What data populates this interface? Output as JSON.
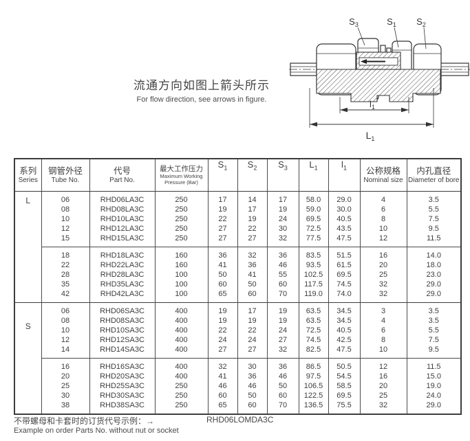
{
  "figure": {
    "caption_zh": "流通方向如图上箭头所示",
    "caption_en": "For flow direction, see arrows in figure.",
    "labels": {
      "s3": {
        "base": "S",
        "sub": "3"
      },
      "s1": {
        "base": "S",
        "sub": "1"
      },
      "s2": {
        "base": "S",
        "sub": "2"
      },
      "l1": {
        "base": "l",
        "sub": "1"
      },
      "L1": {
        "base": "L",
        "sub": "1"
      }
    }
  },
  "table": {
    "headers": {
      "series": {
        "zh": "系列",
        "en": "Series"
      },
      "tube": {
        "zh": "钢管外径",
        "en": "Tube No."
      },
      "part": {
        "zh": "代号",
        "en": "Part No."
      },
      "pressure": {
        "zh": "最大工作压力",
        "en": "Maximum Working Pressure (Bar)"
      },
      "s1": {
        "base": "S",
        "sub": "1"
      },
      "s2": {
        "base": "S",
        "sub": "2"
      },
      "s3": {
        "base": "S",
        "sub": "3"
      },
      "L1": {
        "base": "L",
        "sub": "1"
      },
      "l1": {
        "base": "l",
        "sub": "1"
      },
      "nominal": {
        "zh": "公称规格",
        "en": "Nominal size"
      },
      "bore": {
        "zh": "内孔直径",
        "en": "Diameter of bore"
      }
    },
    "groups": [
      {
        "series": "L",
        "blocks": [
          [
            [
              "06",
              "RHD06LA3C",
              "250",
              "17",
              "14",
              "17",
              "58.0",
              "29.0",
              "4",
              "3.5"
            ],
            [
              "08",
              "RHD08LA3C",
              "250",
              "19",
              "17",
              "19",
              "59.0",
              "30.0",
              "6",
              "5.5"
            ],
            [
              "10",
              "RHD10LA3C",
              "250",
              "22",
              "19",
              "24",
              "69.5",
              "40.5",
              "8",
              "7.5"
            ],
            [
              "12",
              "RHD12LA3C",
              "250",
              "27",
              "22",
              "30",
              "72.5",
              "43.5",
              "10",
              "9.5"
            ],
            [
              "15",
              "RHD15LA3C",
              "250",
              "27",
              "27",
              "32",
              "77.5",
              "47.5",
              "12",
              "11.5"
            ]
          ],
          [
            [
              "18",
              "RHD18LA3C",
              "160",
              "36",
              "32",
              "36",
              "83.5",
              "51.5",
              "16",
              "14.0"
            ],
            [
              "22",
              "RHD22LA3C",
              "160",
              "41",
              "36",
              "46",
              "93.5",
              "61.5",
              "20",
              "18.0"
            ],
            [
              "28",
              "RHD28LA3C",
              "100",
              "50",
              "41",
              "55",
              "102.5",
              "69.5",
              "25",
              "23.0"
            ],
            [
              "35",
              "RHD35LA3C",
              "100",
              "60",
              "50",
              "60",
              "117.5",
              "74.5",
              "32",
              "29.0"
            ],
            [
              "42",
              "RHD42LA3C",
              "100",
              "65",
              "60",
              "70",
              "119.0",
              "74.0",
              "32",
              "29.0"
            ]
          ]
        ]
      },
      {
        "series": "S",
        "blocks": [
          [
            [
              "06",
              "RHD06SA3C",
              "400",
              "19",
              "17",
              "19",
              "63.5",
              "34.5",
              "3",
              "3.5"
            ],
            [
              "08",
              "RHD08SA3C",
              "400",
              "19",
              "19",
              "19",
              "63.5",
              "34.5",
              "4",
              "3.5"
            ],
            [
              "10",
              "RHD10SA3C",
              "400",
              "22",
              "22",
              "24",
              "72.5",
              "40.5",
              "6",
              "5.5"
            ],
            [
              "12",
              "RHD12SA3C",
              "400",
              "24",
              "24",
              "27",
              "74.5",
              "42.5",
              "8",
              "7.5"
            ],
            [
              "14",
              "RHD14SA3C",
              "400",
              "27",
              "27",
              "32",
              "82.5",
              "47.5",
              "10",
              "9.5"
            ]
          ],
          [
            [
              "16",
              "RHD16SA3C",
              "400",
              "32",
              "30",
              "36",
              "86.5",
              "50.5",
              "12",
              "11.5"
            ],
            [
              "20",
              "RHD20SA3C",
              "400",
              "41",
              "36",
              "46",
              "97.5",
              "54.5",
              "16",
              "15.0"
            ],
            [
              "25",
              "RHD25SA3C",
              "250",
              "46",
              "46",
              "50",
              "106.5",
              "58.5",
              "20",
              "19.0"
            ],
            [
              "30",
              "RHD30SA3C",
              "250",
              "60",
              "50",
              "60",
              "122.5",
              "69.5",
              "25",
              "24.0"
            ],
            [
              "38",
              "RHD38SA3C",
              "250",
              "65",
              "60",
              "70",
              "136.5",
              "75.5",
              "32",
              "29.0"
            ]
          ]
        ]
      }
    ]
  },
  "footer": {
    "note_zh": "不带螺母和卡套时的订货代号示例：→",
    "example_part_no": "RHD06LOMDA3C",
    "note_en": "Example on order Parts No. without nut or socket"
  }
}
